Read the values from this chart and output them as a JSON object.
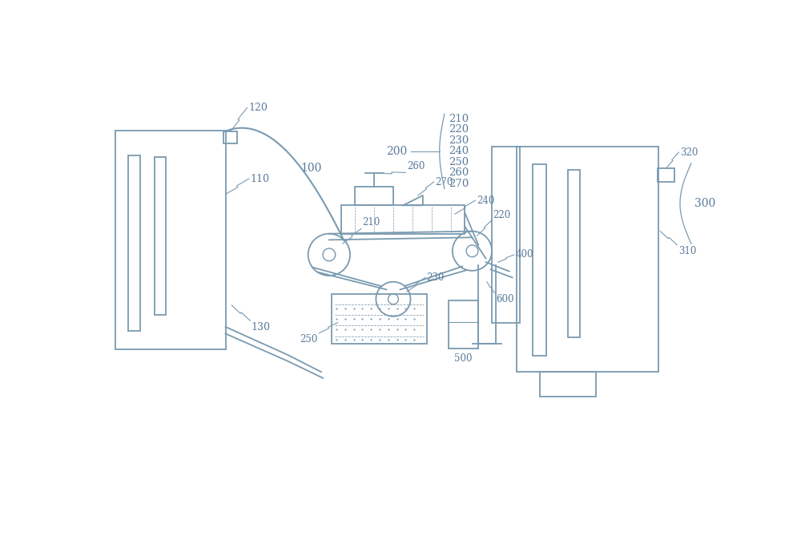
{
  "bg_color": "#ffffff",
  "line_color": "#7a9ab0",
  "text_color": "#5a7a9a",
  "line_width": 1.3,
  "fig_width": 10.0,
  "fig_height": 6.79,
  "xlim": [
    0,
    10
  ],
  "ylim": [
    0,
    6.79
  ]
}
